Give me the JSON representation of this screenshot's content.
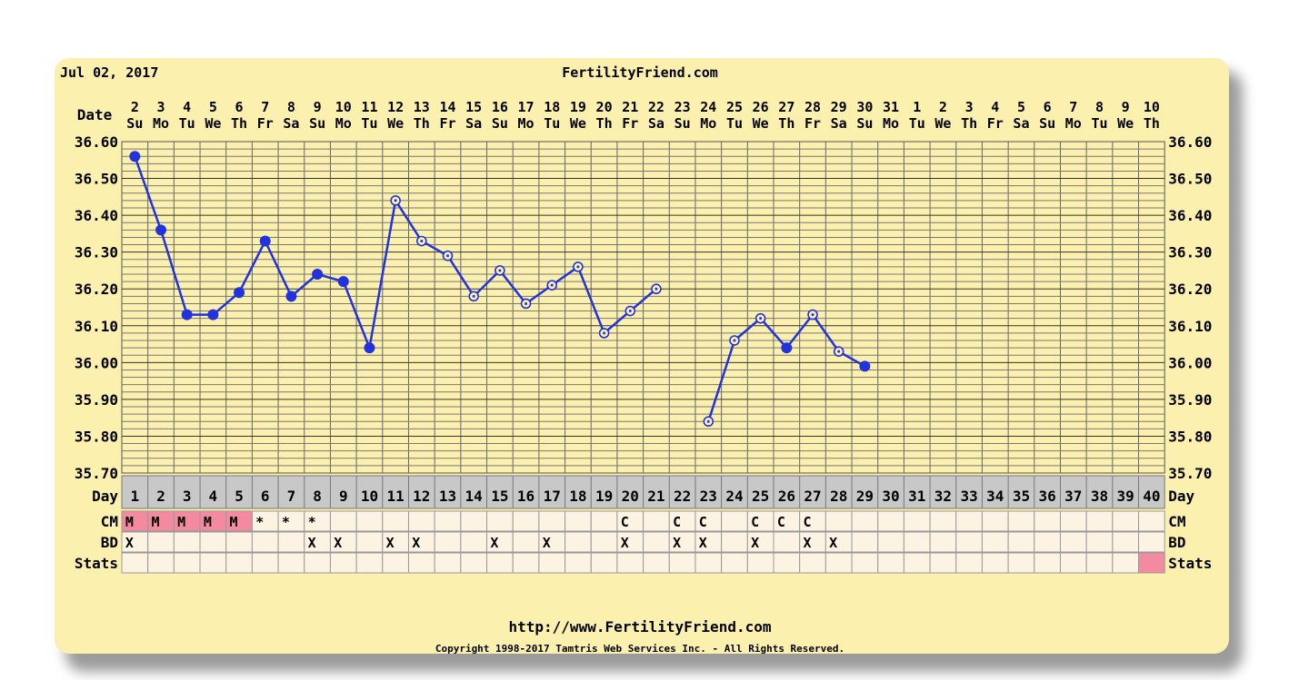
{
  "header": {
    "date": "Jul 02, 2017",
    "site": "FertilityFriend.com"
  },
  "footer": {
    "url": "http://www.FertilityFriend.com",
    "copyright": "Copyright 1998-2017 Tamtris Web Services Inc. - All Rights Reserved."
  },
  "row_labels": {
    "date": "Date",
    "day": "Day",
    "cm": "CM",
    "bd": "BD",
    "stats": "Stats"
  },
  "colors": {
    "background": "#fcf0ae",
    "line": "#2233dd",
    "menstruation": "#f48aa0",
    "cell": "#fdf3e3",
    "day_band": "#c8c8c8"
  },
  "chart_data": {
    "type": "line",
    "ylim": [
      35.7,
      36.6
    ],
    "y_ticks": [
      "36.60",
      "36.50",
      "36.40",
      "36.30",
      "36.20",
      "36.10",
      "36.00",
      "35.90",
      "35.80",
      "35.70"
    ],
    "cycle_days": [
      1,
      2,
      3,
      4,
      5,
      6,
      7,
      8,
      9,
      10,
      11,
      12,
      13,
      14,
      15,
      16,
      17,
      18,
      19,
      20,
      21,
      22,
      23,
      24,
      25,
      26,
      27,
      28,
      29,
      30,
      31,
      32,
      33,
      34,
      35,
      36,
      37,
      38,
      39,
      40
    ],
    "dates": [
      "2",
      "3",
      "4",
      "5",
      "6",
      "7",
      "8",
      "9",
      "10",
      "11",
      "12",
      "13",
      "14",
      "15",
      "16",
      "17",
      "18",
      "19",
      "20",
      "21",
      "22",
      "23",
      "24",
      "25",
      "26",
      "27",
      "28",
      "29",
      "30",
      "31",
      "1",
      "2",
      "3",
      "4",
      "5",
      "6",
      "7",
      "8",
      "9",
      "10"
    ],
    "weekdays": [
      "Su",
      "Mo",
      "Tu",
      "We",
      "Th",
      "Fr",
      "Sa",
      "Su",
      "Mo",
      "Tu",
      "We",
      "Th",
      "Fr",
      "Sa",
      "Su",
      "Mo",
      "Tu",
      "We",
      "Th",
      "Fr",
      "Sa",
      "Su",
      "Mo",
      "Tu",
      "We",
      "Th",
      "Fr",
      "Sa",
      "Su",
      "Mo",
      "Tu",
      "We",
      "Th",
      "Fr",
      "Sa",
      "Su",
      "Mo",
      "Tu",
      "We",
      "Th"
    ],
    "series": [
      {
        "temps": [
          36.56,
          36.36,
          36.13,
          36.13,
          36.19,
          36.33,
          36.18,
          36.24,
          36.22,
          36.04,
          36.44,
          36.33,
          36.29,
          36.18,
          36.25,
          36.16,
          36.21,
          36.26,
          36.08,
          36.14,
          36.2,
          null,
          35.84,
          36.06,
          36.12,
          36.04,
          36.13,
          36.03,
          35.99
        ],
        "point_style": [
          "filled",
          "filled",
          "filled",
          "filled",
          "filled",
          "filled",
          "filled",
          "filled",
          "filled",
          "filled",
          "open",
          "open",
          "open",
          "open",
          "open",
          "open",
          "open",
          "open",
          "open",
          "open",
          "open",
          null,
          "open",
          "open",
          "open",
          "filled",
          "open",
          "open",
          "filled"
        ],
        "dashed_gap": [
          21,
          23
        ]
      }
    ],
    "cm": [
      "M",
      "M",
      "M",
      "M",
      "M",
      "*",
      "*",
      "*",
      "",
      "",
      "",
      "",
      "",
      "",
      "",
      "",
      "",
      "",
      "",
      "C",
      "",
      "C",
      "C",
      "",
      "C",
      "C",
      "C",
      "",
      "",
      "",
      "",
      "",
      "",
      "",
      "",
      "",
      "",
      "",
      "",
      ""
    ],
    "bd": [
      "X",
      "",
      "",
      "",
      "",
      "",
      "",
      "X",
      "X",
      "",
      "X",
      "X",
      "",
      "",
      "X",
      "",
      "X",
      "",
      "",
      "X",
      "",
      "X",
      "X",
      "",
      "X",
      "",
      "X",
      "X",
      "",
      "",
      "",
      "",
      "",
      "",
      "",
      "",
      "",
      "",
      "",
      ""
    ],
    "stats": [
      "",
      "",
      "",
      "",
      "",
      "",
      "",
      "",
      "",
      "",
      "",
      "",
      "",
      "",
      "",
      "",
      "",
      "",
      "",
      "",
      "",
      "",
      "",
      "",
      "",
      "",
      "",
      "",
      "",
      "",
      "",
      "",
      "",
      "",
      "",
      "",
      "",
      "",
      "",
      "flag"
    ]
  }
}
